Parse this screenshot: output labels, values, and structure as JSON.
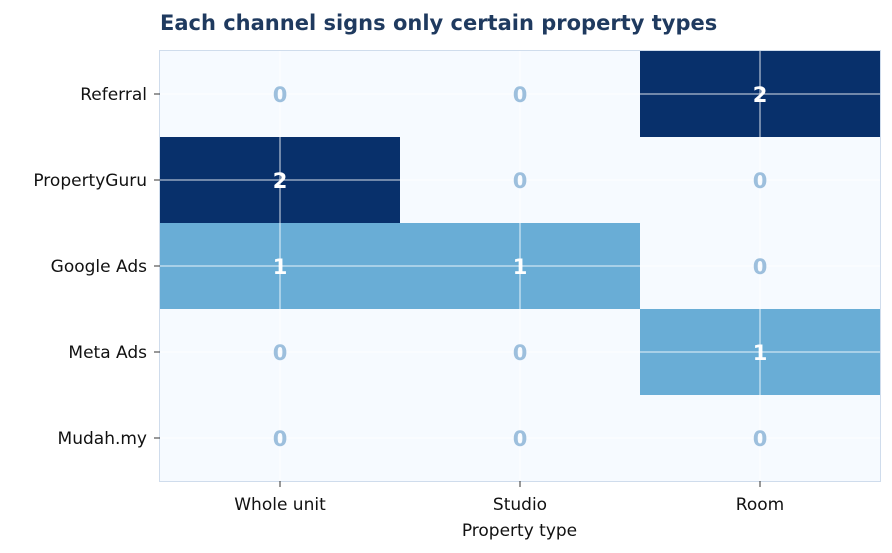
{
  "chart_data": {
    "type": "heatmap",
    "title": "Each channel signs only certain property types",
    "xlabel": "Property type",
    "ylabel": "",
    "x_categories": [
      "Whole unit",
      "Studio",
      "Room"
    ],
    "y_categories": [
      "Referral",
      "PropertyGuru",
      "Google Ads",
      "Meta Ads",
      "Mudah.my"
    ],
    "values": [
      [
        0,
        0,
        2
      ],
      [
        2,
        0,
        0
      ],
      [
        1,
        1,
        0
      ],
      [
        0,
        0,
        1
      ],
      [
        0,
        0,
        0
      ]
    ],
    "value_range": [
      0,
      2
    ],
    "grid": true,
    "colors": {
      "zero": "#f6faff",
      "one": "#69add6",
      "two": "#08306b",
      "label_zero": "#9dbfdd",
      "label_nonzero": "#ffffff",
      "title": "#1f3a5f",
      "frame": "#cfdcec",
      "grid_line": "#ffffff"
    }
  }
}
